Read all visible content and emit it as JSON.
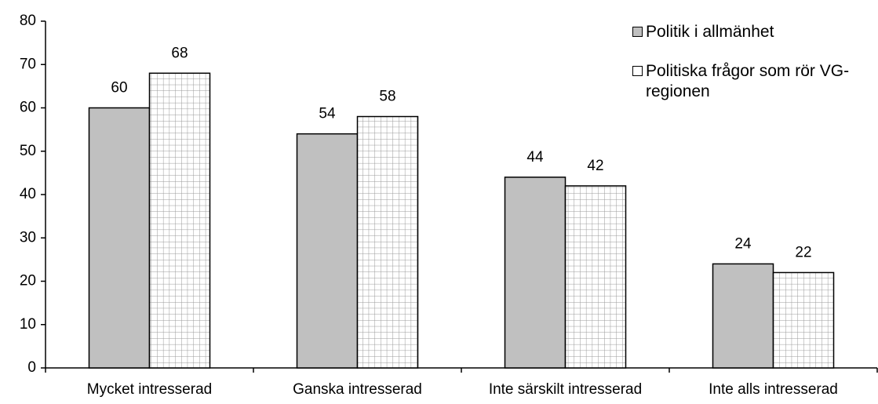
{
  "chart_data": {
    "type": "bar",
    "categories": [
      "Mycket intresserad",
      "Ganska intresserad",
      "Inte särskilt intresserad",
      "Inte alls intresserad"
    ],
    "series": [
      {
        "name": "Politik i allmänhet",
        "color": "#c0c0c0",
        "values": [
          60,
          54,
          44,
          24
        ]
      },
      {
        "name": "Politiska frågor som rör VG-regionen",
        "color": "#ffffff",
        "pattern": "grid",
        "values": [
          68,
          58,
          42,
          22
        ]
      }
    ],
    "ylim": [
      0,
      80
    ],
    "yticks": [
      0,
      10,
      20,
      30,
      40,
      50,
      60,
      70,
      80
    ],
    "legend": "top-right",
    "data_labels": true
  }
}
